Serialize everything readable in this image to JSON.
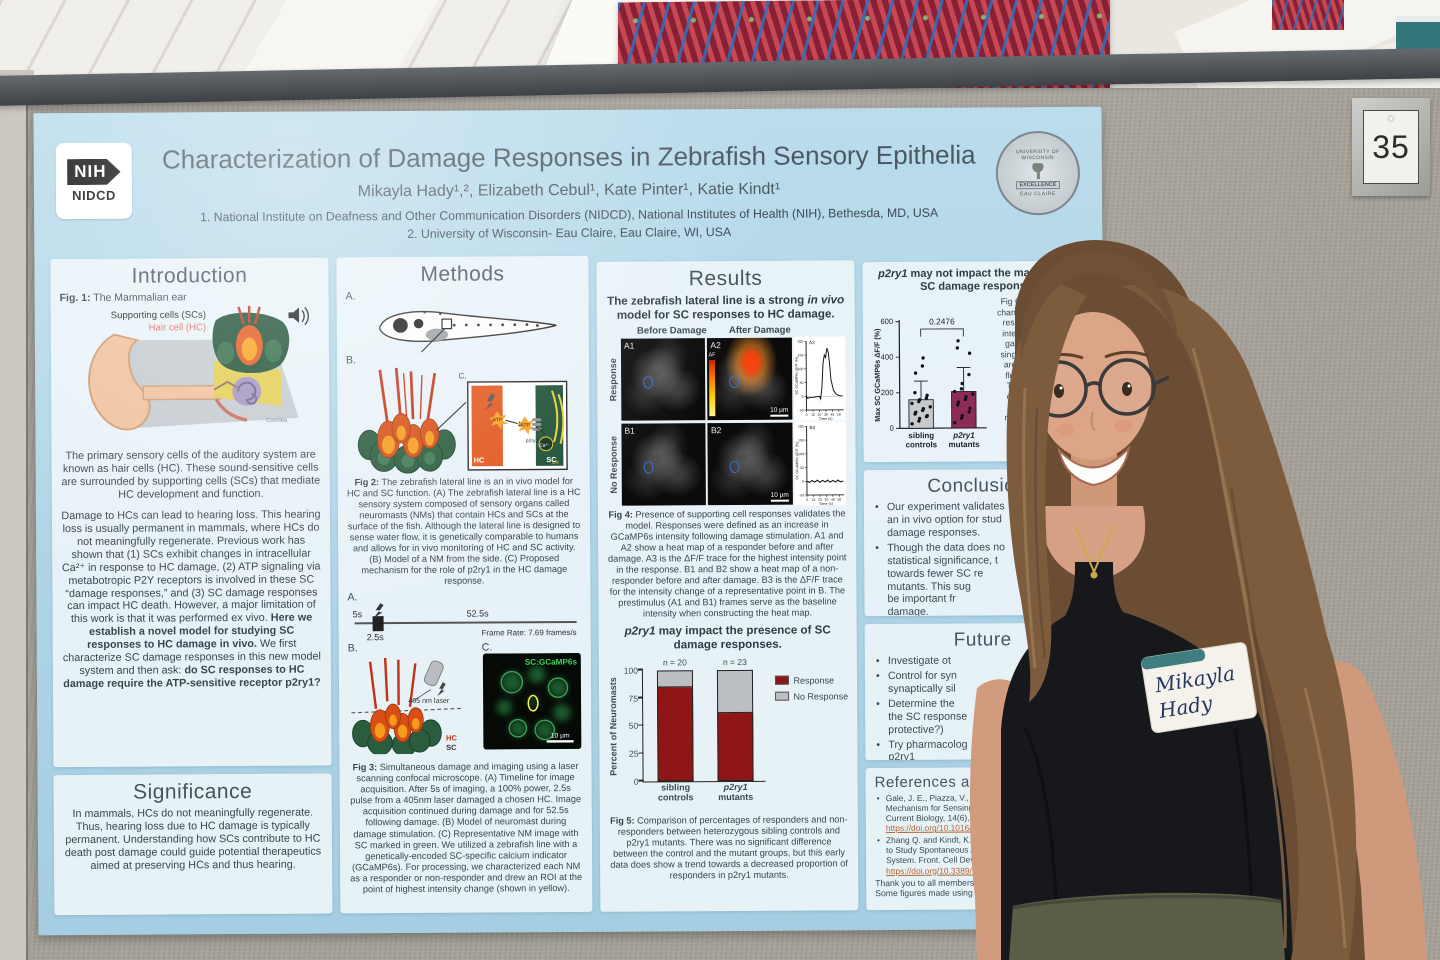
{
  "scene": {
    "tag_number": "35"
  },
  "chart_data": [
    {
      "id": "fig4_a3",
      "type": "line",
      "label": "A3",
      "ylabel": "SC GCaMP6s ΔF/F (%)",
      "xlabel": "Time (s)",
      "yticks": [
        200,
        150,
        100,
        50,
        0,
        -50
      ],
      "xticks": [
        0,
        10,
        20,
        30,
        40,
        50
      ],
      "points": [
        [
          0,
          0
        ],
        [
          2,
          -8
        ],
        [
          5,
          -5
        ],
        [
          10,
          -4
        ],
        [
          15,
          -2
        ],
        [
          20,
          0
        ],
        [
          22,
          -10
        ],
        [
          24,
          30
        ],
        [
          26,
          120
        ],
        [
          28,
          150
        ],
        [
          30,
          140
        ],
        [
          32,
          175
        ],
        [
          34,
          160
        ],
        [
          36,
          120
        ],
        [
          38,
          60
        ],
        [
          42,
          20
        ],
        [
          46,
          8
        ],
        [
          50,
          2
        ],
        [
          56,
          0
        ]
      ]
    },
    {
      "id": "fig4_b3",
      "type": "line",
      "label": "B3",
      "ylabel": "SC GCaMP6s ΔF/F (%)",
      "xlabel": "Time (s)",
      "yticks": [
        200,
        150,
        100,
        50,
        0,
        -50
      ],
      "xticks": [
        0,
        10,
        20,
        30,
        40,
        50
      ],
      "points": [
        [
          0,
          0
        ],
        [
          4,
          -4
        ],
        [
          8,
          3
        ],
        [
          12,
          -3
        ],
        [
          16,
          4
        ],
        [
          20,
          -4
        ],
        [
          24,
          3
        ],
        [
          28,
          -3
        ],
        [
          32,
          4
        ],
        [
          36,
          -4
        ],
        [
          40,
          3
        ],
        [
          44,
          -3
        ],
        [
          48,
          4
        ],
        [
          52,
          -3
        ],
        [
          56,
          0
        ]
      ]
    },
    {
      "id": "fig5",
      "type": "stacked-bar",
      "ylabel": "Percent of Neuromasts",
      "yticks": [
        100,
        75,
        50,
        25,
        0
      ],
      "ylim": [
        0,
        100
      ],
      "groups": [
        {
          "n": "n = 20",
          "label1": "sibling",
          "label2": "controls",
          "response": 85,
          "no_response": 15
        },
        {
          "n": "n = 23",
          "label1": "p2ry1",
          "label2": "mutants",
          "response": 61,
          "no_response": 39
        }
      ],
      "legend": [
        {
          "label": "Response",
          "color": "#8f1616"
        },
        {
          "label": "No Response",
          "color": "#bcbfc2"
        }
      ]
    },
    {
      "id": "fig6",
      "type": "bar-scatter",
      "ylabel": "Max SC GCaMP6s ΔF/F (%)",
      "yticks": [
        600,
        400,
        200,
        0
      ],
      "ylim": [
        0,
        600
      ],
      "pvalue": "0.2476",
      "groups": [
        {
          "label1": "sibling",
          "label2": "controls",
          "mean": 160,
          "err": 265,
          "color": "#c7cacd",
          "dots": [
            25,
            40,
            55,
            65,
            70,
            80,
            90,
            100,
            110,
            120,
            140,
            150,
            160,
            170,
            185,
            200,
            310,
            350,
            395
          ]
        },
        {
          "label1": "p2ry1",
          "label2": "mutants",
          "mean": 205,
          "err": 340,
          "color": "#8e2c58",
          "dots": [
            30,
            55,
            70,
            90,
            110,
            130,
            145,
            160,
            175,
            190,
            205,
            220,
            250,
            300,
            420,
            450,
            490
          ]
        }
      ]
    }
  ],
  "poster": {
    "header": {
      "nih": "NIH",
      "nidcd": "NIDCD",
      "title": "Characterization of Damage Responses in Zebrafish Sensory Epithelia",
      "authors": "Mikayla Hady¹,², Elizabeth Cebul¹, Kate Pinter¹, Katie Kindt¹",
      "affiliation1": "1.   National Institute on Deafness and Other Communication Disorders (NIDCD), National Institutes of Health (NIH), Bethesda, MD, USA",
      "affiliation2": "2. University of Wisconsin- Eau Claire, Eau Claire, WI, USA",
      "seal_top": "UNIVERSITY OF WISCONSIN",
      "seal_mid": "EXCELLENCE",
      "seal_bottom": "EAU CLAIRE"
    },
    "introduction": {
      "heading": "Introduction",
      "fig1_prefix": "Fig. 1:",
      "fig1_label": " The Mammalian ear",
      "ear_sc_label": "Supporting cells (SCs)",
      "ear_hc_label": "Hair cell (HC)",
      "ear_cochlea_label": "Cochlea",
      "para1": "The primary sensory cells of the auditory system are known as hair cells (HC). These sound-sensitive cells are surrounded by supporting cells (SCs) that mediate HC development and function.",
      "para2_a": "Damage to HCs can lead to hearing loss. This hearing loss is usually permanent in mammals, where HCs do not meaningfully regenerate. Previous work has shown that (1) SCs exhibit changes in intracellular Ca²⁺ in response to HC damage, (2) ATP signaling via metabotropic P2Y receptors is involved in these SC “damage responses,” and (3) SC damage responses can impact HC death. However, a major limitation of this work is that it was performed ex vivo. ",
      "para2_bold1": "Here we establish a novel model for studying SC responses to HC damage in vivo.",
      "para2_b": " We first characterize SC damage responses in this new model system and then ask: ",
      "para2_bold2": "do SC responses to HC damage require the ATP-sensitive receptor p2ry1?"
    },
    "significance": {
      "heading": "Significance",
      "text": "In mammals, HCs do not meaningfully regenerate. Thus, hearing loss due to HC damage is typically permanent. Understanding how SCs contribute to HC death post damage could guide potential therapeutics aimed at preserving HCs and thus hearing."
    },
    "methods": {
      "heading": "Methods",
      "label_a": "A.",
      "label_b": "B.",
      "label_c": "C.",
      "hc": "HC",
      "sc": "SC",
      "atp": "ATP",
      "p2ry1": "p2ry1",
      "ca": "Ca²⁺",
      "er": "ER",
      "fig2_prefix": "Fig 2:",
      "fig2_caption": "The zebrafish lateral line is an in vivo model for HC and SC function. (A) The zebrafish lateral line is a HC sensory system composed of sensory organs called neuromasts (NMs) that contain HCs and SCs at the surface of the fish. Although the lateral line is designed to sense water flow, it is genetically comparable to humans and allows for in vivo monitoring of HC and SC activity. (B) Model of a NM from the side. (C) Proposed mechanism for the role of p2ry1 in the HC damage response.",
      "tl_label_a": "A.",
      "tl_5s": "5s",
      "tl_25s": "2.5s",
      "tl_525s": "52.5s",
      "tl_framerate": "Frame Rate: 7.69 frames/s",
      "f3b_label": "B.",
      "f3b_laser": "405 nm laser",
      "f3b_hc": "HC",
      "f3b_sc": "SC",
      "f3c_label": "C.",
      "f3c_tag": "SC:GCaMP6s",
      "f3c_scale": "10 µm",
      "fig3_prefix": "Fig 3:",
      "fig3_caption": "Simultaneous damage and imaging using a laser scanning confocal microscope. (A) Timeline for image acquisition. After 5s of imaging, a 100% power, 2.5s pulse from a 405nm laser damaged a chosen HC. Image acquisition continued during damage and for 52.5s following damage. (B) Model of neuromast during damage stimulation. (C) Representative NM image with SC marked in green. We utilized a zebrafish line with a genetically-encoded SC-specific calcium indicator (GCaMP6s). For processing, we characterized each NM as a responder or non-responder and drew an ROI at the point of highest intensity change (shown in yellow)."
    },
    "results": {
      "heading": "Results",
      "sub1_a": "The zebrafish lateral line is a strong ",
      "sub1_i": "in vivo",
      "sub1_b": " model for SC responses to HC damage.",
      "fig4": {
        "col_before": "Before Damage",
        "col_after": "After Damage",
        "row_response": "Response",
        "row_noresponse": "No Response",
        "p_a1": "A1",
        "p_a2": "A2",
        "p_b1": "B1",
        "p_b2": "B2",
        "scale": "10 µm",
        "delta": "ΔF"
      },
      "fig4_prefix": "Fig 4:",
      "fig4_caption": "Presence of supporting cell responses validates the model. Responses were defined as an increase in GCaMP6s intensity following damage stimulation. A1 and A2 show a heat map of a responder before and after damage. A3 is the ΔF/F trace for the highest intensity point in the response. B1 and B2 show a heat map of a non-responder before and after damage. B3 is the ΔF/F trace for the intensity change of a representative point in B. The prestimulus (A1 and B1) frames serve as the baseline intensity when constructing the heat map.",
      "sub2_i": "p2ry1",
      "sub2_rest": " may impact the presence of SC damage responses.",
      "fig5_prefix": "Fig 5:",
      "fig5_caption": "Comparison of percentages of responders and non-responders between heterozygous sibling controls and p2ry1 mutants. There was no significant difference between the control and the mutant groups, but this early data does show a trend towards a decreased proportion of responders in p2ry1 mutants."
    },
    "magnitude": {
      "sub_i": "p2ry1",
      "sub_rest": " may not impact the magnitude of SC damage responses.",
      "fig6_caption_lines": "Fig 6: N\nchange in\nrespon\nintensit\ngathe\nsingle N\narea o\nfluore\nThes\ndiffer\nher\nmutan"
    },
    "conclusions": {
      "heading": "Conclusions",
      "bullets": [
        "Our experiment validates\nan in vivo option for stud\ndamage responses.",
        "Though the data does no\nstatistical significance, t\ntowards fewer SC re\nmutants. This sug\nbe important fr\ndamage."
      ]
    },
    "future": {
      "heading": "Future",
      "bullets": [
        "Investigate ot",
        "Control for syn\nsynaptically sil",
        "Determine the\nthe SC response\nprotective?)",
        "Try pharmacolog\np2ry1"
      ]
    },
    "references": {
      "heading": "References and A",
      "ref1_text": "Gale, J. E., Piazza, V., Ciubotaru\nMechanism for Sensing Noise Da\nCurrent Biology, 14(6), 526–529.",
      "ref1_link": "https://doi.org/10.1016/j.cub.2004.03",
      "ref2_text": "Zhang Q. and Kindt, K. (2022). Using\nto Study Spontaneous Activity in the\nSystem. Front. Cell Dev. Biol. 10.",
      "ref2_link": "https://doi.org/10.3389/fcell.2022.8196",
      "ack": "Thank you to all members of the Kindt l\nSome figures made using BioRender."
    }
  },
  "person": {
    "name_tag_line1": "Mikayla",
    "name_tag_line2": "Hady"
  }
}
